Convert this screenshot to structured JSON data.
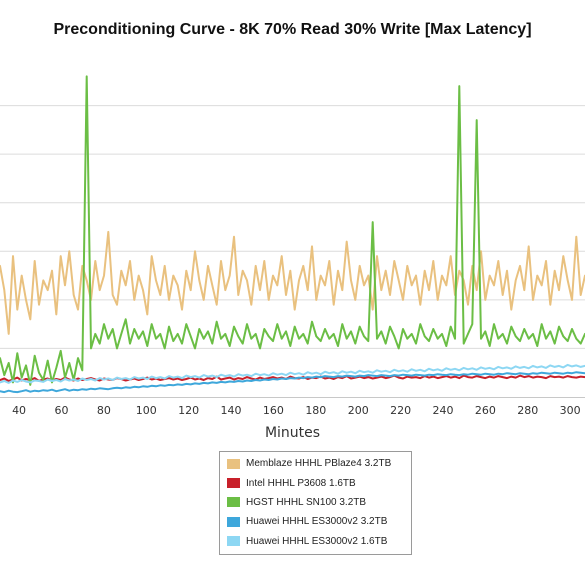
{
  "chart_data": {
    "type": "line",
    "title": "Preconditioning Curve - 8K 70% Read 30% Write [Max Latency]",
    "xlabel": "Minutes",
    "ylabel": "",
    "xlim": [
      31,
      307
    ],
    "ylim": [
      0,
      7
    ],
    "x_ticks": [
      40,
      60,
      80,
      100,
      120,
      140,
      160,
      180,
      200,
      220,
      240,
      260,
      280,
      300
    ],
    "x_tick_labels": [
      "40",
      "60",
      "80",
      "100",
      "120",
      "140",
      "160",
      "180",
      "200",
      "220",
      "240",
      "260",
      "280",
      "300"
    ],
    "y_gridlines": [
      1,
      2,
      3,
      4,
      5,
      6
    ],
    "grid": true,
    "legend_position": "bottom-center",
    "series": [
      {
        "name": "Memblaze HHHL PBlaze4 3.2TB",
        "color": "#E9C17F",
        "samples": 136,
        "values": [
          2.7,
          2.2,
          1.3,
          2.9,
          1.8,
          2.5,
          2.0,
          1.6,
          2.8,
          1.9,
          2.4,
          2.2,
          2.6,
          1.7,
          2.9,
          2.3,
          3.0,
          2.1,
          1.8,
          2.7,
          2.4,
          2.0,
          2.8,
          2.2,
          2.5,
          3.4,
          2.1,
          1.9,
          2.6,
          2.3,
          2.8,
          2.0,
          2.5,
          2.2,
          1.7,
          2.9,
          2.4,
          2.1,
          2.7,
          2.0,
          2.5,
          2.3,
          1.8,
          2.6,
          2.2,
          3.0,
          2.4,
          2.0,
          2.7,
          2.3,
          1.9,
          2.8,
          2.2,
          2.5,
          3.3,
          2.1,
          2.6,
          2.4,
          1.9,
          2.7,
          2.2,
          2.8,
          2.0,
          2.5,
          2.3,
          2.9,
          2.1,
          2.6,
          1.8,
          2.4,
          2.7,
          2.2,
          3.1,
          2.0,
          2.5,
          2.3,
          2.8,
          1.9,
          2.6,
          2.2,
          3.2,
          2.4,
          2.0,
          2.7,
          2.3,
          2.5,
          1.8,
          2.9,
          2.2,
          2.6,
          2.1,
          2.8,
          2.4,
          2.0,
          2.7,
          2.3,
          2.5,
          1.9,
          2.6,
          2.2,
          2.8,
          2.0,
          2.5,
          2.3,
          2.9,
          2.1,
          2.6,
          2.4,
          1.9,
          2.7,
          2.2,
          3.0,
          2.0,
          2.5,
          2.3,
          2.8,
          2.1,
          2.6,
          1.8,
          2.4,
          2.7,
          2.2,
          3.1,
          2.0,
          2.5,
          2.3,
          2.8,
          1.9,
          2.6,
          2.2,
          2.9,
          2.4,
          2.0,
          3.3,
          2.1,
          2.5
        ]
      },
      {
        "name": "Intel HHHL P3608 1.6TB",
        "color": "#C8202A",
        "samples": 136,
        "values": [
          0.35,
          0.38,
          0.33,
          0.36,
          0.4,
          0.34,
          0.37,
          0.35,
          0.39,
          0.33,
          0.36,
          0.38,
          0.34,
          0.37,
          0.35,
          0.4,
          0.36,
          0.34,
          0.38,
          0.35,
          0.37,
          0.39,
          0.36,
          0.34,
          0.38,
          0.36,
          0.35,
          0.39,
          0.37,
          0.34,
          0.36,
          0.38,
          0.35,
          0.37,
          0.4,
          0.36,
          0.38,
          0.35,
          0.37,
          0.39,
          0.36,
          0.38,
          0.35,
          0.37,
          0.4,
          0.36,
          0.38,
          0.35,
          0.39,
          0.37,
          0.42,
          0.36,
          0.38,
          0.4,
          0.36,
          0.39,
          0.37,
          0.41,
          0.38,
          0.36,
          0.4,
          0.37,
          0.39,
          0.41,
          0.38,
          0.4,
          0.37,
          0.42,
          0.39,
          0.38,
          0.41,
          0.37,
          0.4,
          0.39,
          0.42,
          0.38,
          0.4,
          0.37,
          0.41,
          0.39,
          0.43,
          0.38,
          0.4,
          0.42,
          0.39,
          0.41,
          0.38,
          0.4,
          0.42,
          0.39,
          0.41,
          0.44,
          0.4,
          0.38,
          0.42,
          0.4,
          0.41,
          0.39,
          0.43,
          0.4,
          0.42,
          0.39,
          0.41,
          0.43,
          0.4,
          0.42,
          0.39,
          0.44,
          0.41,
          0.4,
          0.43,
          0.41,
          0.39,
          0.42,
          0.4,
          0.43,
          0.41,
          0.39,
          0.42,
          0.4,
          0.44,
          0.41,
          0.43,
          0.4,
          0.42,
          0.41,
          0.39,
          0.43,
          0.41,
          0.42,
          0.4,
          0.43,
          0.41,
          0.4,
          0.42,
          0.41
        ]
      },
      {
        "name": "HGST HHHL SN100 3.2TB",
        "color": "#6BBE45",
        "samples": 136,
        "values": [
          0.8,
          0.45,
          0.7,
          0.3,
          0.9,
          0.4,
          0.65,
          0.25,
          0.85,
          0.5,
          0.35,
          0.75,
          0.3,
          0.6,
          0.95,
          0.4,
          0.7,
          0.35,
          0.8,
          0.55,
          6.6,
          1.0,
          1.3,
          1.1,
          1.5,
          1.2,
          1.4,
          1.0,
          1.3,
          1.6,
          1.1,
          1.4,
          1.2,
          1.35,
          1.05,
          1.5,
          1.2,
          1.3,
          1.0,
          1.45,
          1.15,
          1.3,
          1.1,
          1.5,
          1.25,
          1.0,
          1.4,
          1.2,
          1.35,
          1.1,
          1.55,
          1.2,
          1.3,
          1.05,
          1.45,
          1.25,
          1.1,
          1.5,
          1.2,
          1.3,
          1.0,
          1.4,
          1.25,
          1.15,
          1.5,
          1.2,
          1.35,
          1.05,
          1.45,
          1.2,
          1.3,
          1.1,
          1.55,
          1.25,
          1.15,
          1.4,
          1.2,
          1.3,
          1.05,
          1.5,
          1.2,
          1.35,
          1.1,
          1.45,
          1.25,
          1.15,
          3.6,
          1.2,
          1.35,
          1.1,
          1.45,
          1.25,
          1.0,
          1.4,
          1.2,
          1.3,
          1.1,
          1.5,
          1.25,
          1.15,
          1.4,
          1.2,
          1.3,
          1.05,
          1.45,
          1.2,
          6.4,
          1.1,
          1.3,
          1.5,
          5.7,
          1.2,
          1.35,
          1.05,
          1.5,
          1.2,
          1.3,
          1.1,
          1.45,
          1.25,
          1.15,
          1.4,
          1.2,
          1.3,
          1.05,
          1.5,
          1.2,
          1.35,
          1.1,
          1.45,
          1.25,
          1.15,
          1.4,
          1.2,
          1.1,
          1.3
        ]
      },
      {
        "name": "Huawei HHHL ES3000v2 3.2TB",
        "color": "#3EA7DB",
        "samples": 136,
        "values": [
          0.12,
          0.1,
          0.13,
          0.11,
          0.1,
          0.12,
          0.14,
          0.11,
          0.13,
          0.12,
          0.14,
          0.13,
          0.15,
          0.12,
          0.14,
          0.16,
          0.13,
          0.15,
          0.14,
          0.16,
          0.15,
          0.17,
          0.16,
          0.18,
          0.17,
          0.16,
          0.18,
          0.19,
          0.18,
          0.2,
          0.19,
          0.21,
          0.2,
          0.22,
          0.21,
          0.23,
          0.22,
          0.24,
          0.23,
          0.25,
          0.24,
          0.26,
          0.25,
          0.27,
          0.26,
          0.28,
          0.27,
          0.29,
          0.28,
          0.3,
          0.29,
          0.31,
          0.3,
          0.32,
          0.31,
          0.33,
          0.32,
          0.34,
          0.33,
          0.35,
          0.34,
          0.36,
          0.35,
          0.37,
          0.36,
          0.38,
          0.37,
          0.39,
          0.38,
          0.4,
          0.39,
          0.41,
          0.4,
          0.42,
          0.41,
          0.43,
          0.42,
          0.41,
          0.43,
          0.42,
          0.44,
          0.43,
          0.42,
          0.44,
          0.43,
          0.45,
          0.44,
          0.43,
          0.45,
          0.44,
          0.43,
          0.45,
          0.44,
          0.46,
          0.45,
          0.44,
          0.46,
          0.45,
          0.44,
          0.46,
          0.45,
          0.47,
          0.46,
          0.45,
          0.47,
          0.46,
          0.45,
          0.47,
          0.46,
          0.48,
          0.47,
          0.46,
          0.48,
          0.47,
          0.46,
          0.48,
          0.47,
          0.49,
          0.48,
          0.47,
          0.49,
          0.48,
          0.47,
          0.49,
          0.48,
          0.5,
          0.49,
          0.48,
          0.5,
          0.49,
          0.48,
          0.5,
          0.49,
          0.51,
          0.5,
          0.49
        ]
      },
      {
        "name": "Huawei HHHL ES3000v2 1.6TB",
        "color": "#8DD7F3",
        "samples": 136,
        "values": [
          0.3,
          0.33,
          0.29,
          0.34,
          0.31,
          0.35,
          0.32,
          0.3,
          0.34,
          0.33,
          0.31,
          0.36,
          0.33,
          0.35,
          0.32,
          0.37,
          0.34,
          0.36,
          0.33,
          0.38,
          0.35,
          0.37,
          0.34,
          0.39,
          0.36,
          0.38,
          0.35,
          0.4,
          0.37,
          0.39,
          0.36,
          0.41,
          0.38,
          0.4,
          0.37,
          0.42,
          0.39,
          0.41,
          0.38,
          0.43,
          0.4,
          0.42,
          0.39,
          0.44,
          0.41,
          0.43,
          0.4,
          0.45,
          0.42,
          0.44,
          0.41,
          0.46,
          0.43,
          0.45,
          0.42,
          0.47,
          0.44,
          0.46,
          0.43,
          0.48,
          0.45,
          0.47,
          0.44,
          0.49,
          0.46,
          0.48,
          0.45,
          0.5,
          0.47,
          0.49,
          0.46,
          0.51,
          0.48,
          0.5,
          0.47,
          0.52,
          0.49,
          0.51,
          0.48,
          0.53,
          0.5,
          0.52,
          0.49,
          0.54,
          0.51,
          0.53,
          0.5,
          0.55,
          0.52,
          0.54,
          0.51,
          0.56,
          0.53,
          0.55,
          0.52,
          0.57,
          0.54,
          0.56,
          0.53,
          0.58,
          0.55,
          0.57,
          0.54,
          0.59,
          0.56,
          0.58,
          0.55,
          0.6,
          0.57,
          0.59,
          0.56,
          0.61,
          0.58,
          0.6,
          0.57,
          0.62,
          0.59,
          0.61,
          0.58,
          0.63,
          0.6,
          0.62,
          0.59,
          0.64,
          0.61,
          0.63,
          0.6,
          0.65,
          0.62,
          0.64,
          0.61,
          0.66,
          0.63,
          0.65,
          0.62,
          0.64
        ]
      }
    ]
  }
}
